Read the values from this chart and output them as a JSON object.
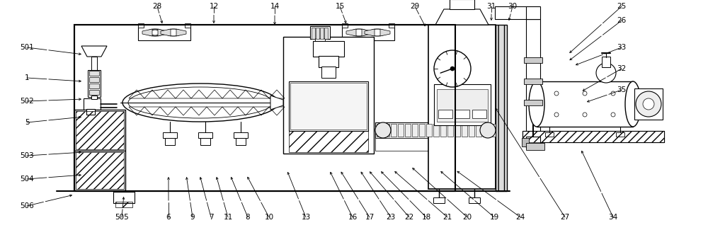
{
  "bg_color": "#ffffff",
  "lc": "#000000",
  "fig_width": 10.0,
  "fig_height": 3.25,
  "dpi": 100,
  "label_items": [
    [
      "501",
      38,
      258,
      118,
      248
    ],
    [
      "1",
      38,
      215,
      118,
      210
    ],
    [
      "502",
      38,
      182,
      118,
      185
    ],
    [
      "5",
      38,
      152,
      118,
      160
    ],
    [
      "503",
      38,
      105,
      118,
      110
    ],
    [
      "504",
      38,
      72,
      118,
      78
    ],
    [
      "506",
      38,
      34,
      105,
      50
    ],
    [
      "28",
      222,
      316,
      230,
      289
    ],
    [
      "12",
      302,
      316,
      302,
      289
    ],
    [
      "14",
      388,
      316,
      388,
      287
    ],
    [
      "15",
      480,
      316,
      490,
      289
    ],
    [
      "29",
      586,
      316,
      602,
      285
    ],
    [
      "31",
      694,
      316,
      694,
      293
    ],
    [
      "30",
      724,
      316,
      718,
      293
    ],
    [
      "25",
      878,
      316,
      802,
      248
    ],
    [
      "26",
      878,
      296,
      802,
      238
    ],
    [
      "33",
      878,
      258,
      810,
      232
    ],
    [
      "32",
      878,
      228,
      820,
      195
    ],
    [
      "35",
      878,
      198,
      826,
      180
    ],
    [
      "505",
      172,
      18,
      175,
      50
    ],
    [
      "6",
      238,
      18,
      238,
      78
    ],
    [
      "9",
      272,
      18,
      263,
      78
    ],
    [
      "7",
      298,
      18,
      282,
      78
    ],
    [
      "11",
      322,
      18,
      305,
      78
    ],
    [
      "8",
      350,
      18,
      325,
      78
    ],
    [
      "10",
      380,
      18,
      348,
      78
    ],
    [
      "13",
      432,
      18,
      405,
      85
    ],
    [
      "16",
      498,
      18,
      465,
      85
    ],
    [
      "17",
      522,
      18,
      480,
      85
    ],
    [
      "23",
      552,
      18,
      508,
      85
    ],
    [
      "22",
      578,
      18,
      520,
      85
    ],
    [
      "18",
      602,
      18,
      536,
      85
    ],
    [
      "21",
      632,
      18,
      555,
      85
    ],
    [
      "20",
      660,
      18,
      580,
      90
    ],
    [
      "19",
      698,
      18,
      620,
      85
    ],
    [
      "24",
      735,
      18,
      643,
      85
    ],
    [
      "27",
      798,
      18,
      698,
      175
    ],
    [
      "34",
      866,
      18,
      820,
      115
    ]
  ]
}
